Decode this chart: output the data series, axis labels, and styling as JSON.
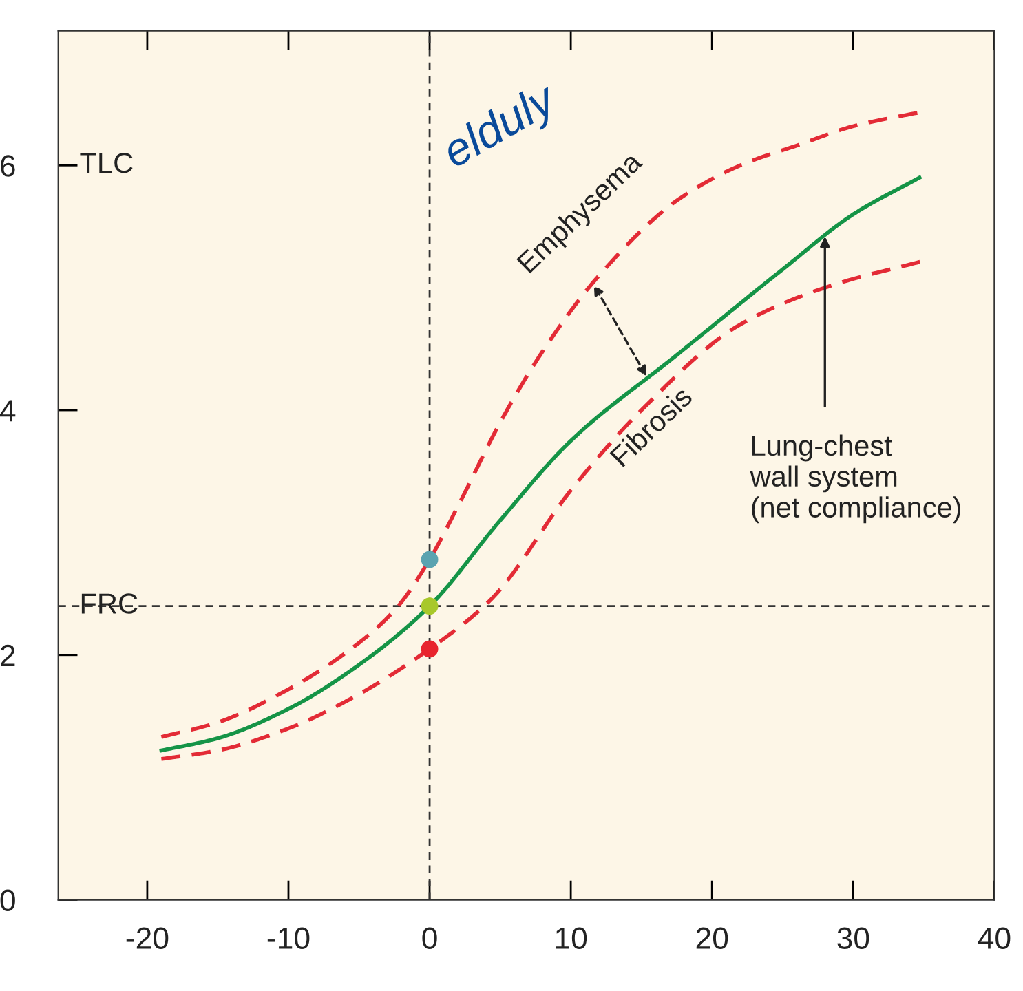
{
  "chart_data": {
    "type": "line",
    "xlim": [
      -26.3,
      40
    ],
    "ylim": [
      0,
      7.1
    ],
    "xticks": [
      -20,
      -10,
      0,
      10,
      20,
      30,
      40
    ],
    "yticks": [
      0,
      2,
      4,
      6
    ],
    "grid": false,
    "marker": "none",
    "series": [
      {
        "color": "#e32b36",
        "line_style": "dashed",
        "x": [
          -19,
          -15,
          -10,
          -5,
          -2.3,
          0,
          2.2,
          5,
          8,
          12,
          17.6,
          22,
          26.2,
          30,
          35
        ],
        "values": [
          1.33,
          1.45,
          1.72,
          2.1,
          2.39,
          2.78,
          3.26,
          3.9,
          4.48,
          5.1,
          5.72,
          6.0,
          6.17,
          6.32,
          6.44
        ]
      },
      {
        "color": "#159447",
        "line_style": "solid",
        "x": [
          -19,
          -15,
          -10,
          -5,
          0,
          5,
          10,
          17.5,
          25,
          30,
          34.7
        ],
        "values": [
          1.22,
          1.32,
          1.56,
          1.92,
          2.4,
          3.1,
          3.75,
          4.45,
          5.15,
          5.6,
          5.9
        ]
      },
      {
        "color": "#e32b36",
        "line_style": "dashed",
        "x": [
          -19,
          -15,
          -10,
          -5,
          0,
          4.4,
          10.1,
          15,
          22,
          28.5,
          35
        ],
        "values": [
          1.15,
          1.22,
          1.4,
          1.68,
          2.05,
          2.46,
          3.36,
          4.0,
          4.7,
          5.02,
          5.22
        ]
      },
      {
        "type": "scatter",
        "marker": "circle",
        "x": [
          0,
          0,
          0
        ],
        "values": [
          2.78,
          2.4,
          2.05
        ],
        "colors": [
          "#5aa3b0",
          "#a8c82a",
          "#e8252e"
        ]
      }
    ],
    "ref_lines": [
      {
        "axis": "x",
        "value": 0,
        "line_style": "dashed",
        "color": "#333333"
      },
      {
        "axis": "y",
        "value": 2.4,
        "label": "FRC",
        "line_style": "dashed",
        "color": "#333333"
      }
    ],
    "annotations": [
      "TLC",
      {
        "text": "Emphysema",
        "x": 11.5,
        "y": 5.05
      },
      {
        "text": "Fibrosis",
        "x": 15.5,
        "y": 4.25
      },
      {
        "text": "Lung-chest\nwall system\n(net compliance)",
        "x": 28,
        "y": 5.45
      },
      "elduly"
    ]
  }
}
